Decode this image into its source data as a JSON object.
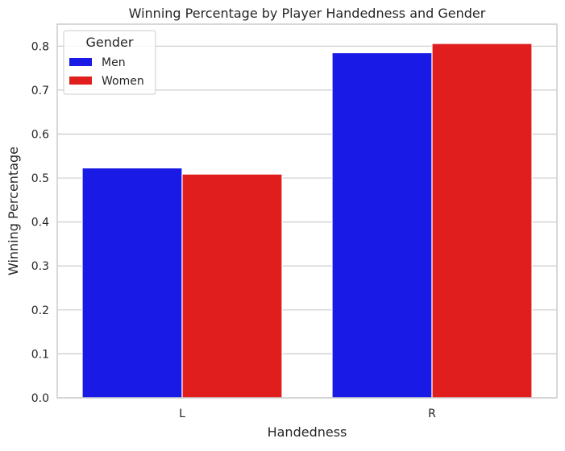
{
  "chart_data": {
    "type": "bar",
    "title": "Winning Percentage by Player Handedness and Gender",
    "xlabel": "Handedness",
    "ylabel": "Winning Percentage",
    "categories": [
      "L",
      "R"
    ],
    "series": [
      {
        "name": "Men",
        "values": [
          0.523,
          0.785
        ],
        "color": "#1a1ae6"
      },
      {
        "name": "Women",
        "values": [
          0.509,
          0.806
        ],
        "color": "#e01e1e"
      }
    ],
    "ylim": [
      0,
      0.85
    ],
    "yticks": [
      "0.0",
      "0.1",
      "0.2",
      "0.3",
      "0.4",
      "0.5",
      "0.6",
      "0.7",
      "0.8"
    ],
    "grid": "horizontal",
    "legend": {
      "title": "Gender",
      "placement": "top-left"
    }
  }
}
